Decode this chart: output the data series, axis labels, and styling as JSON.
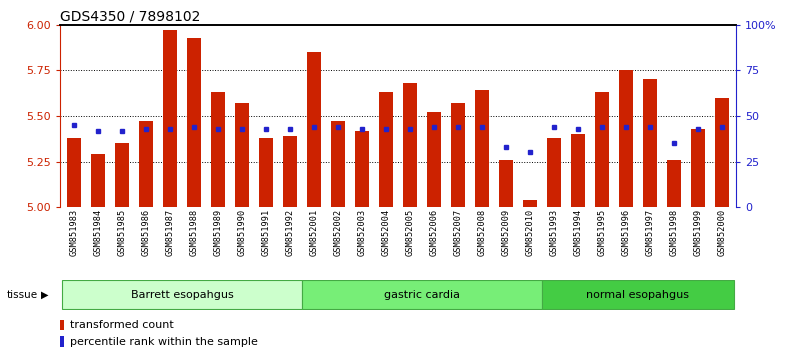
{
  "title": "GDS4350 / 7898102",
  "samples": [
    "GSM851983",
    "GSM851984",
    "GSM851985",
    "GSM851986",
    "GSM851987",
    "GSM851988",
    "GSM851989",
    "GSM851990",
    "GSM851991",
    "GSM851992",
    "GSM852001",
    "GSM852002",
    "GSM852003",
    "GSM852004",
    "GSM852005",
    "GSM852006",
    "GSM852007",
    "GSM852008",
    "GSM852009",
    "GSM852010",
    "GSM851993",
    "GSM851994",
    "GSM851995",
    "GSM851996",
    "GSM851997",
    "GSM851998",
    "GSM851999",
    "GSM852000"
  ],
  "red_values": [
    5.38,
    5.29,
    5.35,
    5.47,
    5.97,
    5.93,
    5.63,
    5.57,
    5.38,
    5.39,
    5.85,
    5.47,
    5.42,
    5.63,
    5.68,
    5.52,
    5.57,
    5.64,
    5.26,
    5.04,
    5.38,
    5.4,
    5.63,
    5.75,
    5.7,
    5.26,
    5.43,
    5.6
  ],
  "blue_values": [
    45,
    42,
    42,
    43,
    43,
    44,
    43,
    43,
    43,
    43,
    44,
    44,
    43,
    43,
    43,
    44,
    44,
    44,
    33,
    30,
    44,
    43,
    44,
    44,
    44,
    35,
    43,
    44
  ],
  "groups": [
    {
      "label": "Barrett esopahgus",
      "start": 0,
      "end": 9,
      "color": "#ccffcc",
      "edge": "#44aa44"
    },
    {
      "label": "gastric cardia",
      "start": 10,
      "end": 19,
      "color": "#77ee77",
      "edge": "#44aa44"
    },
    {
      "label": "normal esopahgus",
      "start": 20,
      "end": 27,
      "color": "#44cc44",
      "edge": "#44aa44"
    }
  ],
  "ylim_left": [
    5.0,
    6.0
  ],
  "ylim_right": [
    0,
    100
  ],
  "yticks_left": [
    5.0,
    5.25,
    5.5,
    5.75,
    6.0
  ],
  "yticks_right": [
    0,
    25,
    50,
    75,
    100
  ],
  "bar_color_red": "#cc2200",
  "bar_color_blue": "#2222cc",
  "left_axis_color": "#cc2200",
  "right_axis_color": "#2222cc",
  "bg_color": "#ffffff",
  "bar_width": 0.6,
  "grid_lines": [
    5.25,
    5.5,
    5.75
  ]
}
